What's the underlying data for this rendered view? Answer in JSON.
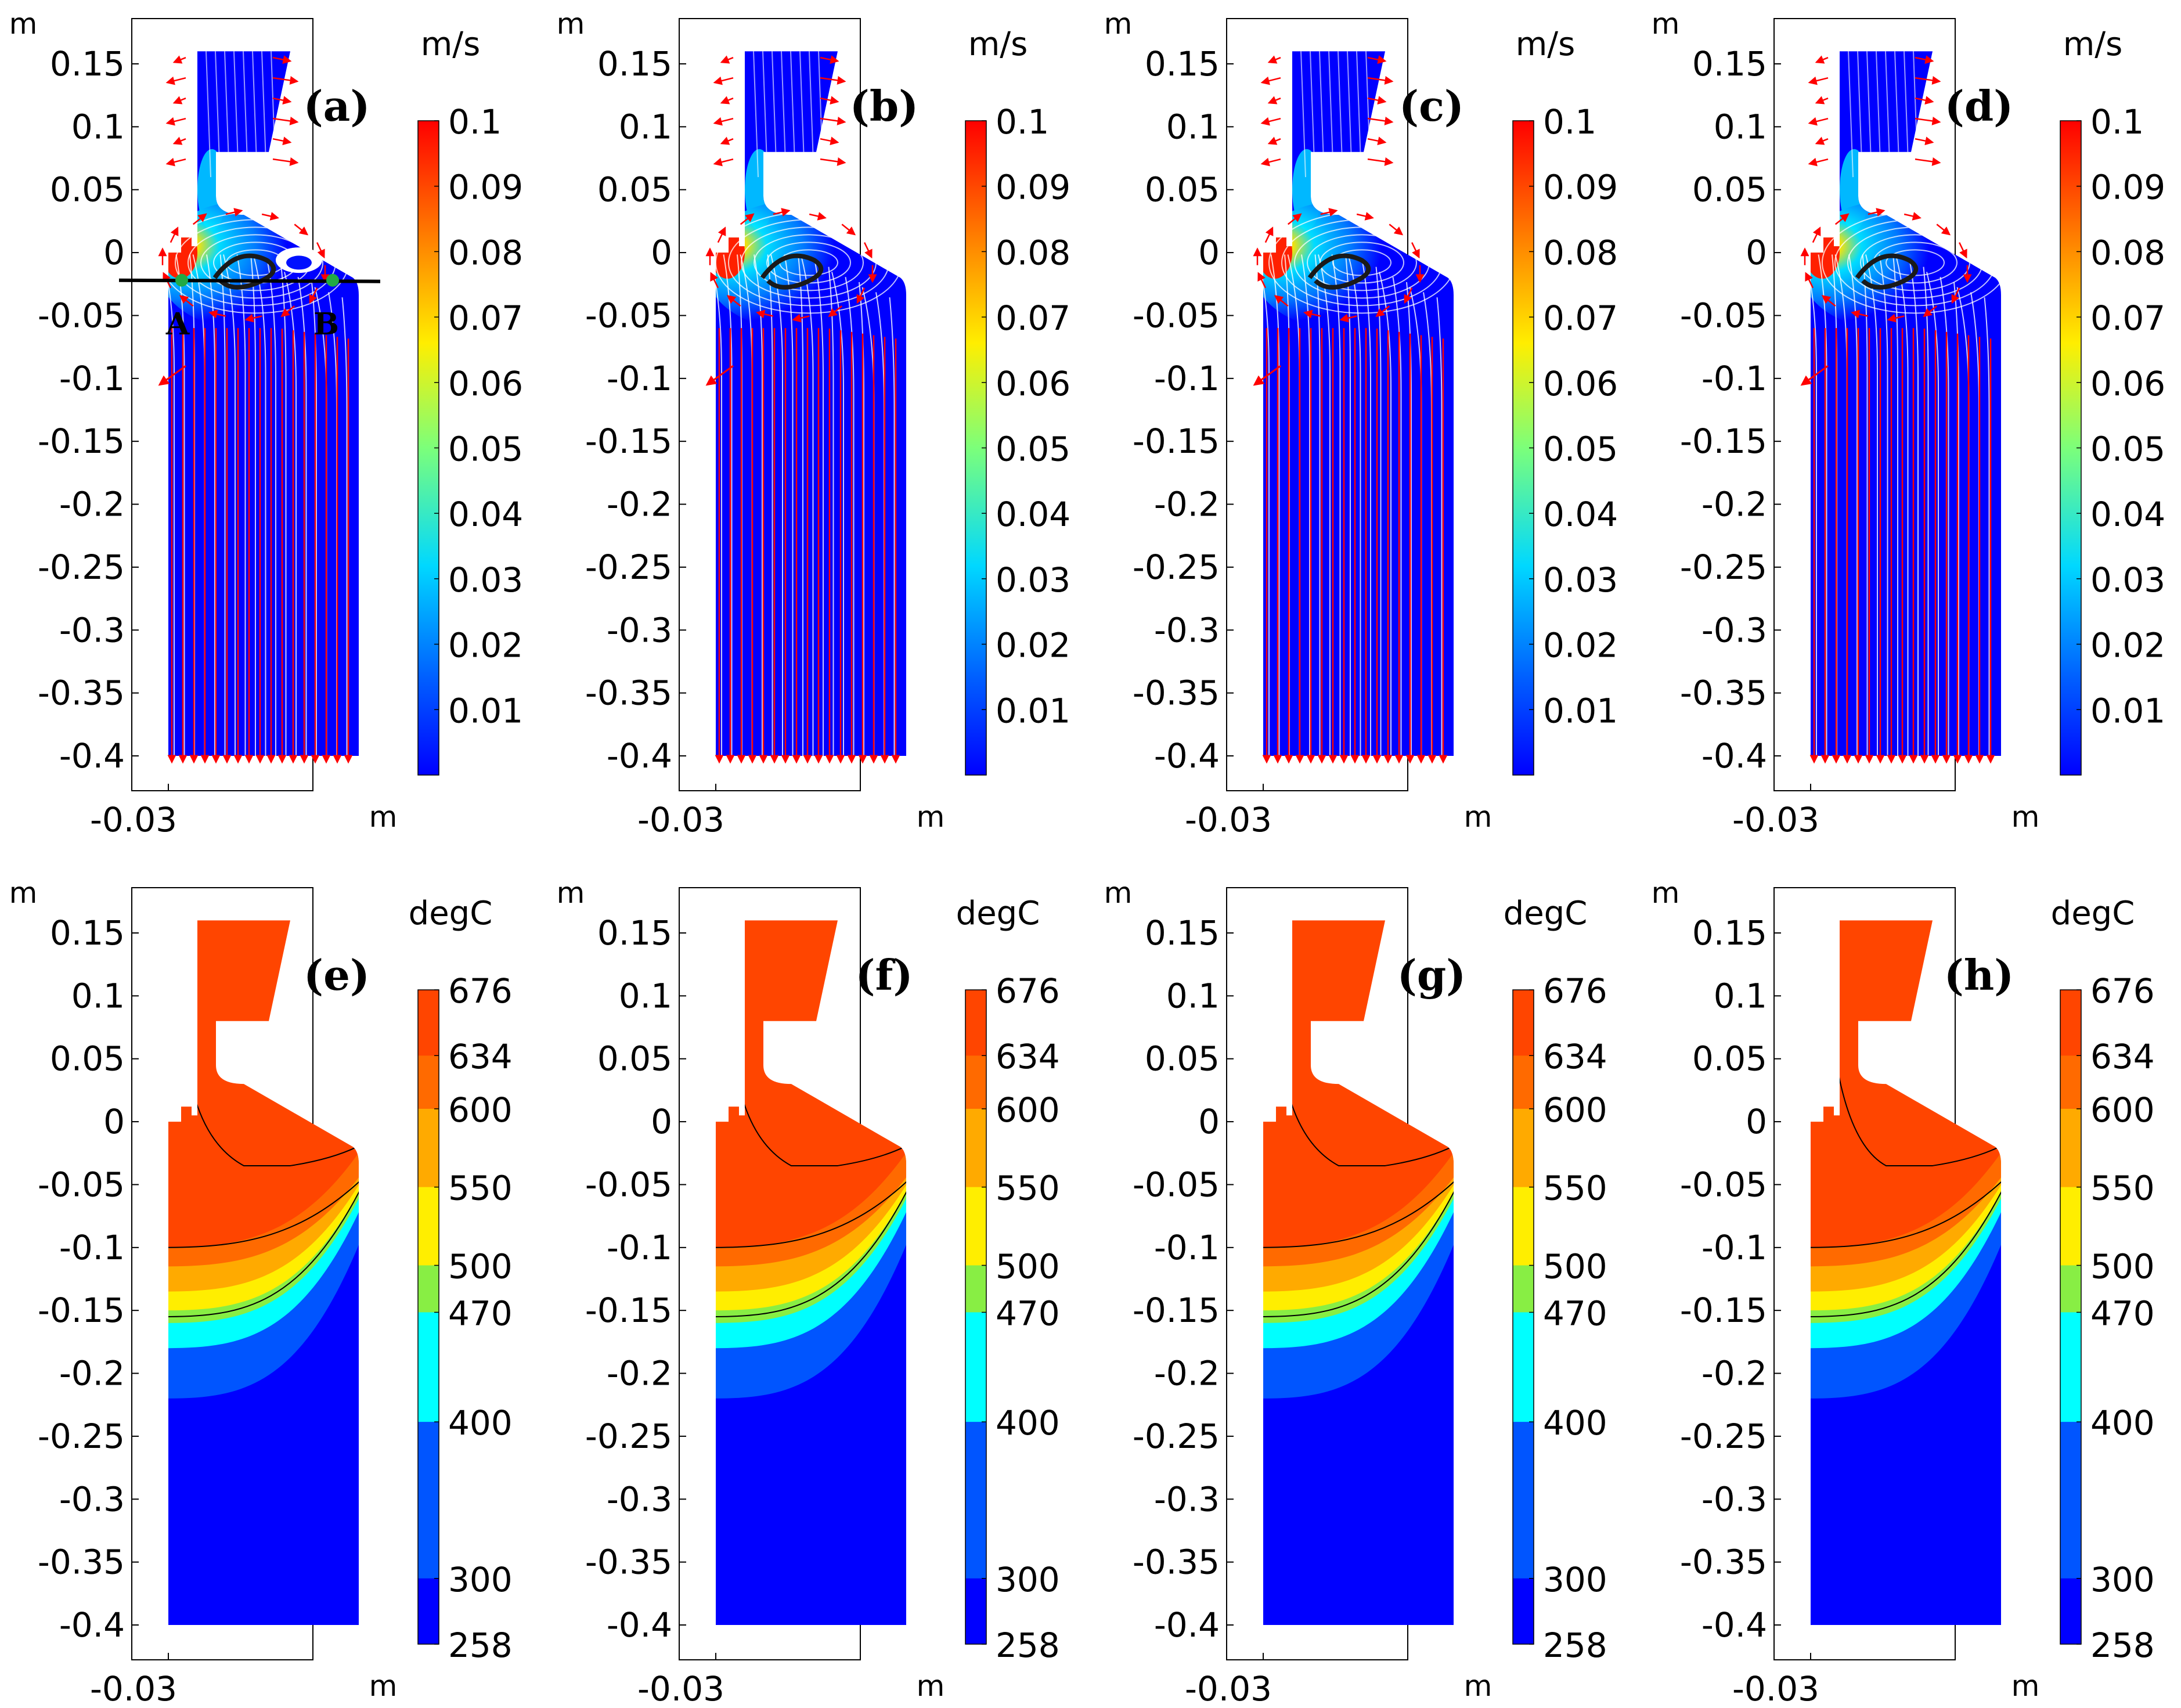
{
  "chart_data": [
    {
      "type": "heatmap",
      "label": "(a)",
      "quantity": "velocity magnitude with streamlines and arrows",
      "units": "m/s",
      "x_unit_label": "m",
      "y_unit_label": "m",
      "x_tick": "-0.03",
      "y_ticks": [
        "0.15",
        "0.1",
        "0.05",
        "0",
        "-0.05",
        "-0.1",
        "-0.15",
        "-0.2",
        "-0.25",
        "-0.3",
        "-0.35",
        "-0.4"
      ],
      "y_values": [
        0.15,
        0.1,
        0.05,
        0,
        -0.05,
        -0.1,
        -0.15,
        -0.2,
        -0.25,
        -0.3,
        -0.35,
        -0.4
      ],
      "ylim": [
        -0.43,
        0.185
      ],
      "colorbar_ticks": [
        "0.1",
        "0.09",
        "0.08",
        "0.07",
        "0.06",
        "0.05",
        "0.04",
        "0.03",
        "0.02",
        "0.01"
      ],
      "colorbar_values": [
        0.1,
        0.09,
        0.08,
        0.07,
        0.06,
        0.05,
        0.04,
        0.03,
        0.02,
        0.01
      ],
      "colorbar_range": [
        0,
        0.1
      ],
      "annotations": [
        "A",
        "B"
      ]
    },
    {
      "type": "heatmap",
      "label": "(b)",
      "quantity": "velocity magnitude with streamlines and arrows",
      "units": "m/s",
      "x_unit_label": "m",
      "y_unit_label": "m",
      "x_tick": "-0.03",
      "y_ticks": [
        "0.15",
        "0.1",
        "0.05",
        "0",
        "-0.05",
        "-0.1",
        "-0.15",
        "-0.2",
        "-0.25",
        "-0.3",
        "-0.35",
        "-0.4"
      ],
      "y_values": [
        0.15,
        0.1,
        0.05,
        0,
        -0.05,
        -0.1,
        -0.15,
        -0.2,
        -0.25,
        -0.3,
        -0.35,
        -0.4
      ],
      "ylim": [
        -0.43,
        0.185
      ],
      "colorbar_ticks": [
        "0.1",
        "0.09",
        "0.08",
        "0.07",
        "0.06",
        "0.05",
        "0.04",
        "0.03",
        "0.02",
        "0.01"
      ],
      "colorbar_values": [
        0.1,
        0.09,
        0.08,
        0.07,
        0.06,
        0.05,
        0.04,
        0.03,
        0.02,
        0.01
      ],
      "colorbar_range": [
        0,
        0.1
      ]
    },
    {
      "type": "heatmap",
      "label": "(c)",
      "quantity": "velocity magnitude with streamlines and arrows",
      "units": "m/s",
      "x_unit_label": "m",
      "y_unit_label": "m",
      "x_tick": "-0.03",
      "y_ticks": [
        "0.15",
        "0.1",
        "0.05",
        "0",
        "-0.05",
        "-0.1",
        "-0.15",
        "-0.2",
        "-0.25",
        "-0.3",
        "-0.35",
        "-0.4"
      ],
      "y_values": [
        0.15,
        0.1,
        0.05,
        0,
        -0.05,
        -0.1,
        -0.15,
        -0.2,
        -0.25,
        -0.3,
        -0.35,
        -0.4
      ],
      "ylim": [
        -0.43,
        0.185
      ],
      "colorbar_ticks": [
        "0.1",
        "0.09",
        "0.08",
        "0.07",
        "0.06",
        "0.05",
        "0.04",
        "0.03",
        "0.02",
        "0.01"
      ],
      "colorbar_values": [
        0.1,
        0.09,
        0.08,
        0.07,
        0.06,
        0.05,
        0.04,
        0.03,
        0.02,
        0.01
      ],
      "colorbar_range": [
        0,
        0.1
      ]
    },
    {
      "type": "heatmap",
      "label": "(d)",
      "quantity": "velocity magnitude with streamlines and arrows",
      "units": "m/s",
      "x_unit_label": "m",
      "y_unit_label": "m",
      "x_tick": "-0.03",
      "y_ticks": [
        "0.15",
        "0.1",
        "0.05",
        "0",
        "-0.05",
        "-0.1",
        "-0.15",
        "-0.2",
        "-0.25",
        "-0.3",
        "-0.35",
        "-0.4"
      ],
      "y_values": [
        0.15,
        0.1,
        0.05,
        0,
        -0.05,
        -0.1,
        -0.15,
        -0.2,
        -0.25,
        -0.3,
        -0.35,
        -0.4
      ],
      "ylim": [
        -0.43,
        0.185
      ],
      "colorbar_ticks": [
        "0.1",
        "0.09",
        "0.08",
        "0.07",
        "0.06",
        "0.05",
        "0.04",
        "0.03",
        "0.02",
        "0.01"
      ],
      "colorbar_values": [
        0.1,
        0.09,
        0.08,
        0.07,
        0.06,
        0.05,
        0.04,
        0.03,
        0.02,
        0.01
      ],
      "colorbar_range": [
        0,
        0.1
      ]
    },
    {
      "type": "heatmap",
      "label": "(e)",
      "quantity": "temperature contours",
      "units": "degC",
      "x_unit_label": "m",
      "y_unit_label": "m",
      "x_tick": "-0.03",
      "y_ticks": [
        "0.15",
        "0.1",
        "0.05",
        "0",
        "-0.05",
        "-0.1",
        "-0.15",
        "-0.2",
        "-0.25",
        "-0.3",
        "-0.35",
        "-0.4"
      ],
      "y_values": [
        0.15,
        0.1,
        0.05,
        0,
        -0.05,
        -0.1,
        -0.15,
        -0.2,
        -0.25,
        -0.3,
        -0.35,
        -0.4
      ],
      "ylim": [
        -0.43,
        0.185
      ],
      "colorbar_ticks": [
        "676",
        "634",
        "600",
        "550",
        "500",
        "470",
        "400",
        "300",
        "258"
      ],
      "colorbar_values": [
        676,
        634,
        600,
        550,
        500,
        470,
        400,
        300,
        258
      ],
      "colorbar_range": [
        258,
        676
      ]
    },
    {
      "type": "heatmap",
      "label": "(f)",
      "quantity": "temperature contours",
      "units": "degC",
      "x_unit_label": "m",
      "y_unit_label": "m",
      "x_tick": "-0.03",
      "y_ticks": [
        "0.15",
        "0.1",
        "0.05",
        "0",
        "-0.05",
        "-0.1",
        "-0.15",
        "-0.2",
        "-0.25",
        "-0.3",
        "-0.35",
        "-0.4"
      ],
      "y_values": [
        0.15,
        0.1,
        0.05,
        0,
        -0.05,
        -0.1,
        -0.15,
        -0.2,
        -0.25,
        -0.3,
        -0.35,
        -0.4
      ],
      "ylim": [
        -0.43,
        0.185
      ],
      "colorbar_ticks": [
        "676",
        "634",
        "600",
        "550",
        "500",
        "470",
        "400",
        "300",
        "258"
      ],
      "colorbar_values": [
        676,
        634,
        600,
        550,
        500,
        470,
        400,
        300,
        258
      ],
      "colorbar_range": [
        258,
        676
      ]
    },
    {
      "type": "heatmap",
      "label": "(g)",
      "quantity": "temperature contours",
      "units": "degC",
      "x_unit_label": "m",
      "y_unit_label": "m",
      "x_tick": "-0.03",
      "y_ticks": [
        "0.15",
        "0.1",
        "0.05",
        "0",
        "-0.05",
        "-0.1",
        "-0.15",
        "-0.2",
        "-0.25",
        "-0.3",
        "-0.35",
        "-0.4"
      ],
      "y_values": [
        0.15,
        0.1,
        0.05,
        0,
        -0.05,
        -0.1,
        -0.15,
        -0.2,
        -0.25,
        -0.3,
        -0.35,
        -0.4
      ],
      "ylim": [
        -0.43,
        0.185
      ],
      "colorbar_ticks": [
        "676",
        "634",
        "600",
        "550",
        "500",
        "470",
        "400",
        "300",
        "258"
      ],
      "colorbar_values": [
        676,
        634,
        600,
        550,
        500,
        470,
        400,
        300,
        258
      ],
      "colorbar_range": [
        258,
        676
      ]
    },
    {
      "type": "heatmap",
      "label": "(h)",
      "quantity": "temperature contours",
      "units": "degC",
      "x_unit_label": "m",
      "y_unit_label": "m",
      "x_tick": "-0.03",
      "y_ticks": [
        "0.15",
        "0.1",
        "0.05",
        "0",
        "-0.05",
        "-0.1",
        "-0.15",
        "-0.2",
        "-0.25",
        "-0.3",
        "-0.35",
        "-0.4"
      ],
      "y_values": [
        0.15,
        0.1,
        0.05,
        0,
        -0.05,
        -0.1,
        -0.15,
        -0.2,
        -0.25,
        -0.3,
        -0.35,
        -0.4
      ],
      "ylim": [
        -0.43,
        0.185
      ],
      "colorbar_ticks": [
        "676",
        "634",
        "600",
        "550",
        "500",
        "470",
        "400",
        "300",
        "258"
      ],
      "colorbar_values": [
        676,
        634,
        600,
        550,
        500,
        470,
        400,
        300,
        258
      ],
      "colorbar_range": [
        258,
        676
      ]
    }
  ],
  "colors": {
    "velocity_colormap": [
      "#0000ff",
      "#0080ff",
      "#00e8ff",
      "#7cff7a",
      "#ffee00",
      "#ff8000",
      "#ff0000"
    ],
    "temperature_bands": [
      "#0000ff",
      "#0055ff",
      "#00ffff",
      "#88ee44",
      "#ffee00",
      "#ffaa00",
      "#ff6a00",
      "#ff4500"
    ],
    "arrow": "#ff0000",
    "streamline": "#ffffff",
    "contour": "#000000"
  }
}
